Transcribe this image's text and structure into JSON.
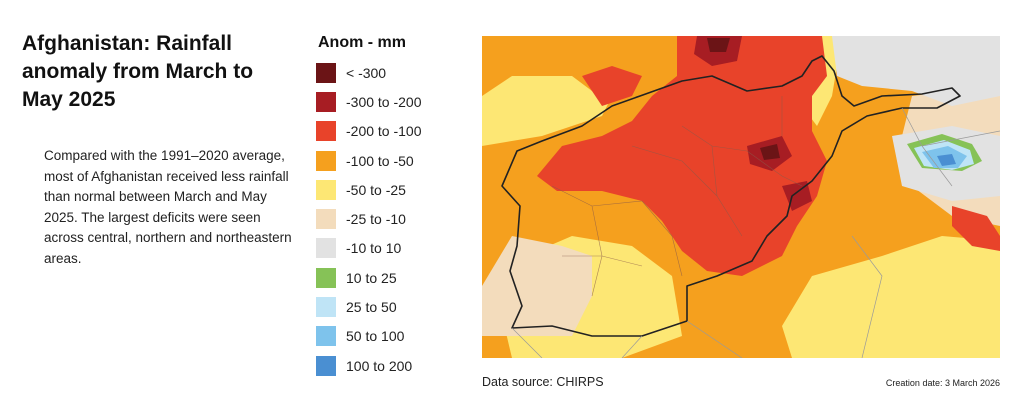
{
  "title": "Afghanistan: Rainfall anomaly from March to May 2025",
  "description": "Compared with the 1991–2020 average, most of Afghanistan received less rainfall than normal between March and May 2025. The largest deficits were seen across central, northern and northeastern areas.",
  "legend": {
    "title": "Anom - mm",
    "classes": [
      {
        "label": "< -300",
        "color": "#6b1416"
      },
      {
        "label": "-300 to -200",
        "color": "#a71d23"
      },
      {
        "label": "-200 to -100",
        "color": "#e8432a"
      },
      {
        "label": "-100 to -50",
        "color": "#f5a01e"
      },
      {
        "label": "-50 to -25",
        "color": "#fde774"
      },
      {
        "label": "-25 to -10",
        "color": "#f3dcbc"
      },
      {
        "label": "-10 to 10",
        "color": "#e2e2e2"
      },
      {
        "label": "10 to 25",
        "color": "#86c257"
      },
      {
        "label": "25 to 50",
        "color": "#bfe4f6"
      },
      {
        "label": "50 to 100",
        "color": "#7ec3ec"
      },
      {
        "label": "100 to 200",
        "color": "#4a8fd2"
      }
    ]
  },
  "map": {
    "country": "Afghanistan",
    "border_color": "#222222"
  },
  "footer": {
    "source": "Data source: CHIRPS",
    "creation_date": "Creation date: 3 March 2026"
  }
}
